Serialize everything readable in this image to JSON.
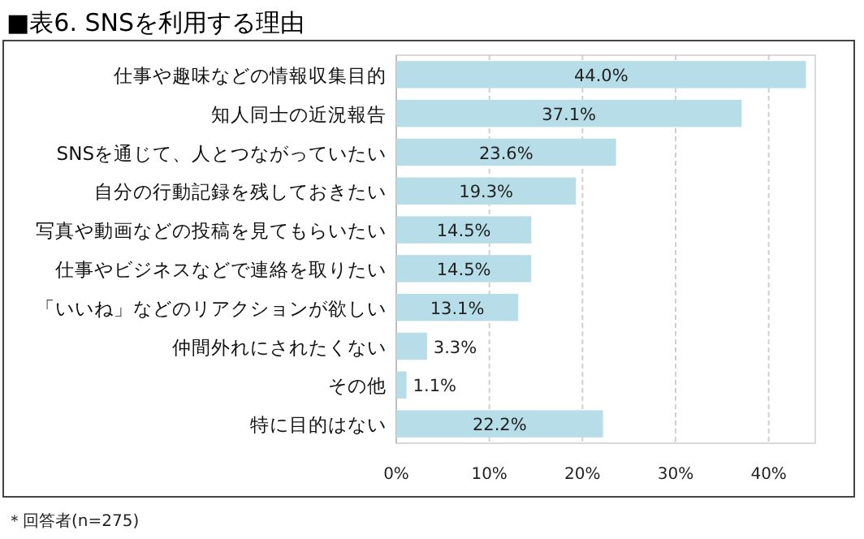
{
  "chart_data": {
    "type": "bar",
    "orientation": "horizontal",
    "title": "■表6. SNSを利用する理由",
    "categories": [
      "仕事や趣味などの情報収集目的",
      "知人同士の近況報告",
      "SNSを通じて、人とつながっていたい",
      "自分の行動記録を残しておきたい",
      "写真や動画などの投稿を見てもらいたい",
      "仕事やビジネスなどで連絡を取りたい",
      "「いいね」などのリアクションが欲しい",
      "仲間外れにされたくない",
      "その他",
      "特に目的はない"
    ],
    "values": [
      44.0,
      37.1,
      23.6,
      19.3,
      14.5,
      14.5,
      13.1,
      3.3,
      1.1,
      22.2
    ],
    "value_labels": [
      "44.0%",
      "37.1%",
      "23.6%",
      "19.3%",
      "14.5%",
      "14.5%",
      "13.1%",
      "3.3%",
      "1.1%",
      "22.2%"
    ],
    "color": "#b7dde8",
    "xlim": [
      0,
      45
    ],
    "xticks": [
      {
        "value": 0,
        "label": "0%"
      },
      {
        "value": 10,
        "label": "10%"
      },
      {
        "value": 20,
        "label": "20%"
      },
      {
        "value": 30,
        "label": "30%"
      },
      {
        "value": 40,
        "label": "40%"
      }
    ],
    "grid": "x",
    "annotations": [
      "＊回答者(n=275)"
    ]
  }
}
